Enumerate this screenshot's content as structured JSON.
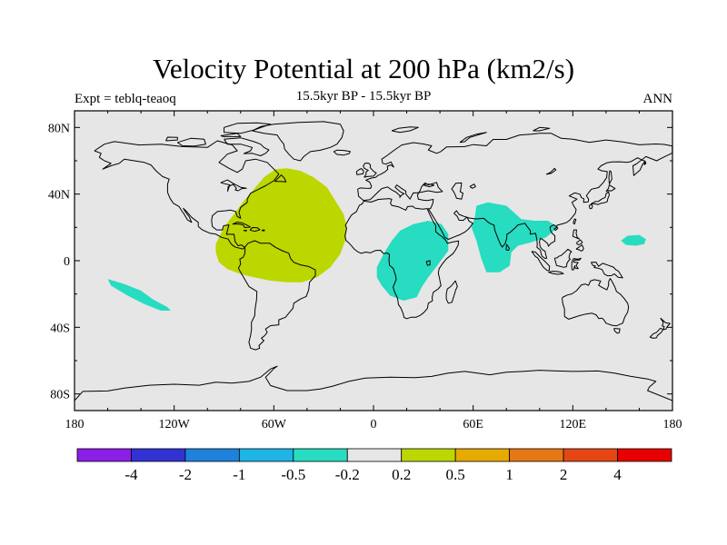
{
  "title": "Velocity Potential at 200 hPa (km2/s)",
  "subtitle": "15.5kyr BP - 15.5kyr BP",
  "left_tag": "Expt = teblq-teaoq",
  "right_tag": "ANN",
  "colors": {
    "background_field": "#e6e6e6",
    "positive_05": "#bcd600",
    "negative_05": "#27dcc0",
    "coast": "#000000"
  },
  "map": {
    "lon_range": [
      -180,
      180
    ],
    "lat_range": [
      -90,
      90
    ],
    "lat_ticks": [
      {
        "value": 80,
        "label": "80N"
      },
      {
        "value": 40,
        "label": "40N"
      },
      {
        "value": 0,
        "label": "0"
      },
      {
        "value": -40,
        "label": "40S"
      },
      {
        "value": -80,
        "label": "80S"
      }
    ],
    "lon_ticks": [
      {
        "value": -180,
        "label": "180"
      },
      {
        "value": -120,
        "label": "120W"
      },
      {
        "value": -60,
        "label": "60W"
      },
      {
        "value": 0,
        "label": "0"
      },
      {
        "value": 60,
        "label": "60E"
      },
      {
        "value": 120,
        "label": "120E"
      },
      {
        "value": 180,
        "label": "180"
      }
    ]
  },
  "colorbar": {
    "colors": [
      "#8c1ee6",
      "#3232d2",
      "#1e82dc",
      "#1eb4e6",
      "#27dcc0",
      "#e6e6e6",
      "#bcd600",
      "#e6aa00",
      "#e67814",
      "#e64614",
      "#e60000"
    ],
    "labels": [
      "-4",
      "-2",
      "-1",
      "-0.5",
      "-0.2",
      "0.2",
      "0.5",
      "1",
      "2",
      "4"
    ]
  },
  "chart_data": {
    "type": "heatmap",
    "title": "Velocity Potential at 200 hPa (km2/s)",
    "variable": "velocity potential difference",
    "units": "km2/s",
    "levels": [
      -4,
      -2,
      -1,
      -0.5,
      -0.2,
      0.2,
      0.5,
      1,
      2,
      4
    ],
    "regions": [
      {
        "name": "atlantic-positive",
        "class": "0.5 to 1",
        "polygon_lonlat": [
          [
            -95,
            10
          ],
          [
            -90,
            20
          ],
          [
            -84,
            28
          ],
          [
            -78,
            36
          ],
          [
            -72,
            43
          ],
          [
            -66,
            50
          ],
          [
            -59,
            55
          ],
          [
            -52,
            55.5
          ],
          [
            -44,
            54
          ],
          [
            -36,
            50
          ],
          [
            -28,
            44
          ],
          [
            -23,
            36
          ],
          [
            -18,
            28
          ],
          [
            -16,
            20
          ],
          [
            -17,
            12
          ],
          [
            -20,
            4
          ],
          [
            -26,
            -4
          ],
          [
            -34,
            -10
          ],
          [
            -43,
            -13
          ],
          [
            -52,
            -13
          ],
          [
            -62,
            -12
          ],
          [
            -72,
            -10
          ],
          [
            -80,
            -8
          ],
          [
            -88,
            -5
          ],
          [
            -93,
            -1
          ],
          [
            -95,
            5
          ]
        ]
      },
      {
        "name": "africa-negative",
        "class": "-0.5 to -0.2",
        "polygon_lonlat": [
          [
            2,
            -4
          ],
          [
            6,
            4
          ],
          [
            11,
            12
          ],
          [
            16,
            18
          ],
          [
            24,
            22
          ],
          [
            33,
            24
          ],
          [
            41,
            22
          ],
          [
            45,
            16
          ],
          [
            45,
            6
          ],
          [
            39,
            -2
          ],
          [
            33,
            -10
          ],
          [
            29,
            -16
          ],
          [
            26,
            -22
          ],
          [
            18,
            -24
          ],
          [
            10,
            -21
          ],
          [
            5,
            -15
          ],
          [
            2,
            -10
          ]
        ]
      },
      {
        "name": "asia-negative",
        "class": "-0.5 to -0.2",
        "polygon_lonlat": [
          [
            61,
            26
          ],
          [
            62,
            33
          ],
          [
            69,
            35
          ],
          [
            80,
            33
          ],
          [
            89,
            25
          ],
          [
            97,
            24
          ],
          [
            105,
            24
          ],
          [
            111,
            20
          ],
          [
            104,
            14
          ],
          [
            95,
            11
          ],
          [
            87,
            9
          ],
          [
            83,
            5
          ],
          [
            82,
            -3
          ],
          [
            76,
            -7
          ],
          [
            68,
            -7
          ],
          [
            65,
            1
          ],
          [
            62,
            12
          ],
          [
            59,
            20
          ]
        ]
      },
      {
        "name": "west-pacific-negative",
        "class": "-0.5 to -0.2",
        "polygon_lonlat": [
          [
            149,
            12
          ],
          [
            153,
            15
          ],
          [
            160,
            15.5
          ],
          [
            164,
            13
          ],
          [
            163,
            10
          ],
          [
            158,
            9
          ],
          [
            152,
            9.5
          ]
        ]
      },
      {
        "name": "south-pacific-negative",
        "class": "-0.5 to -0.2",
        "polygon_lonlat": [
          [
            -160,
            -11
          ],
          [
            -150,
            -14
          ],
          [
            -140,
            -18
          ],
          [
            -133,
            -23
          ],
          [
            -124,
            -28
          ],
          [
            -122,
            -30
          ],
          [
            -128,
            -30
          ],
          [
            -138,
            -26
          ],
          [
            -148,
            -21
          ],
          [
            -158,
            -15
          ]
        ]
      }
    ]
  }
}
